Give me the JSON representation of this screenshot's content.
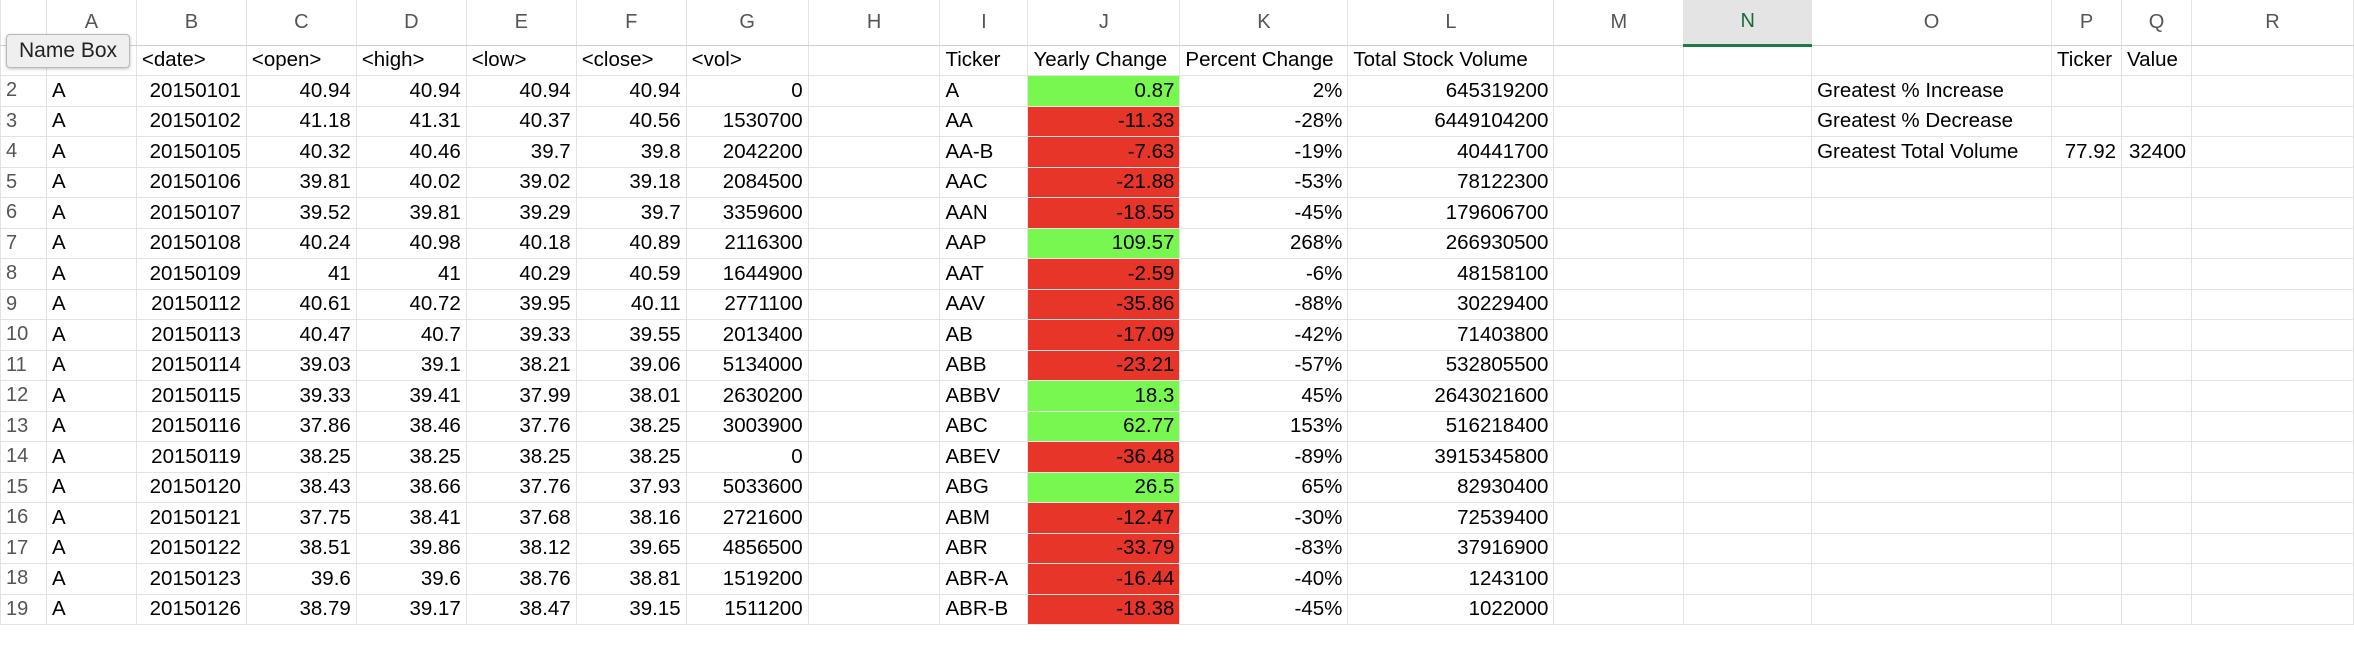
{
  "name_box": "Name Box",
  "columns": [
    "A",
    "B",
    "C",
    "D",
    "E",
    "F",
    "G",
    "H",
    "I",
    "J",
    "K",
    "L",
    "M",
    "N",
    "O",
    "P",
    "Q",
    "R"
  ],
  "selected_column": "N",
  "header_row": {
    "row": "",
    "cells": [
      "",
      "<date>",
      "<open>",
      "<high>",
      "<low>",
      "<close>",
      "<vol>",
      "",
      "Ticker",
      "Yearly Change",
      "Percent Change",
      "Total Stock Volume",
      "",
      "",
      "",
      "Ticker",
      "Value",
      ""
    ]
  },
  "rows": [
    {
      "row": "2",
      "cells": [
        "A",
        "20150101",
        "40.94",
        "40.94",
        "40.94",
        "40.94",
        "0",
        "",
        "A",
        "0.87",
        "2%",
        "645319200",
        "",
        "",
        "Greatest % Increase",
        "",
        "",
        ""
      ],
      "change_status": "positive"
    },
    {
      "row": "3",
      "cells": [
        "A",
        "20150102",
        "41.18",
        "41.31",
        "40.37",
        "40.56",
        "1530700",
        "",
        "AA",
        "-11.33",
        "-28%",
        "6449104200",
        "",
        "",
        "Greatest % Decrease",
        "",
        "",
        ""
      ],
      "change_status": "negative"
    },
    {
      "row": "4",
      "cells": [
        "A",
        "20150105",
        "40.32",
        "40.46",
        "39.7",
        "39.8",
        "2042200",
        "",
        "AA-B",
        "-7.63",
        "-19%",
        "40441700",
        "",
        "",
        "Greatest Total Volume",
        "77.92",
        "32400",
        ""
      ],
      "change_status": "negative"
    },
    {
      "row": "5",
      "cells": [
        "A",
        "20150106",
        "39.81",
        "40.02",
        "39.02",
        "39.18",
        "2084500",
        "",
        "AAC",
        "-21.88",
        "-53%",
        "78122300",
        "",
        "",
        "",
        "",
        "",
        ""
      ],
      "change_status": "negative"
    },
    {
      "row": "6",
      "cells": [
        "A",
        "20150107",
        "39.52",
        "39.81",
        "39.29",
        "39.7",
        "3359600",
        "",
        "AAN",
        "-18.55",
        "-45%",
        "179606700",
        "",
        "",
        "",
        "",
        "",
        ""
      ],
      "change_status": "negative"
    },
    {
      "row": "7",
      "cells": [
        "A",
        "20150108",
        "40.24",
        "40.98",
        "40.18",
        "40.89",
        "2116300",
        "",
        "AAP",
        "109.57",
        "268%",
        "266930500",
        "",
        "",
        "",
        "",
        "",
        ""
      ],
      "change_status": "positive"
    },
    {
      "row": "8",
      "cells": [
        "A",
        "20150109",
        "41",
        "41",
        "40.29",
        "40.59",
        "1644900",
        "",
        "AAT",
        "-2.59",
        "-6%",
        "48158100",
        "",
        "",
        "",
        "",
        "",
        ""
      ],
      "change_status": "negative"
    },
    {
      "row": "9",
      "cells": [
        "A",
        "20150112",
        "40.61",
        "40.72",
        "39.95",
        "40.11",
        "2771100",
        "",
        "AAV",
        "-35.86",
        "-88%",
        "30229400",
        "",
        "",
        "",
        "",
        "",
        ""
      ],
      "change_status": "negative"
    },
    {
      "row": "10",
      "cells": [
        "A",
        "20150113",
        "40.47",
        "40.7",
        "39.33",
        "39.55",
        "2013400",
        "",
        "AB",
        "-17.09",
        "-42%",
        "71403800",
        "",
        "",
        "",
        "",
        "",
        ""
      ],
      "change_status": "negative"
    },
    {
      "row": "11",
      "cells": [
        "A",
        "20150114",
        "39.03",
        "39.1",
        "38.21",
        "39.06",
        "5134000",
        "",
        "ABB",
        "-23.21",
        "-57%",
        "532805500",
        "",
        "",
        "",
        "",
        "",
        ""
      ],
      "change_status": "negative"
    },
    {
      "row": "12",
      "cells": [
        "A",
        "20150115",
        "39.33",
        "39.41",
        "37.99",
        "38.01",
        "2630200",
        "",
        "ABBV",
        "18.3",
        "45%",
        "2643021600",
        "",
        "",
        "",
        "",
        "",
        ""
      ],
      "change_status": "positive"
    },
    {
      "row": "13",
      "cells": [
        "A",
        "20150116",
        "37.86",
        "38.46",
        "37.76",
        "38.25",
        "3003900",
        "",
        "ABC",
        "62.77",
        "153%",
        "516218400",
        "",
        "",
        "",
        "",
        "",
        ""
      ],
      "change_status": "positive"
    },
    {
      "row": "14",
      "cells": [
        "A",
        "20150119",
        "38.25",
        "38.25",
        "38.25",
        "38.25",
        "0",
        "",
        "ABEV",
        "-36.48",
        "-89%",
        "3915345800",
        "",
        "",
        "",
        "",
        "",
        ""
      ],
      "change_status": "negative"
    },
    {
      "row": "15",
      "cells": [
        "A",
        "20150120",
        "38.43",
        "38.66",
        "37.76",
        "37.93",
        "5033600",
        "",
        "ABG",
        "26.5",
        "65%",
        "82930400",
        "",
        "",
        "",
        "",
        "",
        ""
      ],
      "change_status": "positive"
    },
    {
      "row": "16",
      "cells": [
        "A",
        "20150121",
        "37.75",
        "38.41",
        "37.68",
        "38.16",
        "2721600",
        "",
        "ABM",
        "-12.47",
        "-30%",
        "72539400",
        "",
        "",
        "",
        "",
        "",
        ""
      ],
      "change_status": "negative"
    },
    {
      "row": "17",
      "cells": [
        "A",
        "20150122",
        "38.51",
        "39.86",
        "38.12",
        "39.65",
        "4856500",
        "",
        "ABR",
        "-33.79",
        "-83%",
        "37916900",
        "",
        "",
        "",
        "",
        "",
        ""
      ],
      "change_status": "negative"
    },
    {
      "row": "18",
      "cells": [
        "A",
        "20150123",
        "39.6",
        "39.6",
        "38.76",
        "38.81",
        "1519200",
        "",
        "ABR-A",
        "-16.44",
        "-40%",
        "1243100",
        "",
        "",
        "",
        "",
        "",
        ""
      ],
      "change_status": "negative"
    },
    {
      "row": "19",
      "cells": [
        "A",
        "20150126",
        "38.79",
        "39.17",
        "38.47",
        "39.15",
        "1511200",
        "",
        "ABR-B",
        "-18.38",
        "-45%",
        "1022000",
        "",
        "",
        "",
        "",
        "",
        ""
      ],
      "change_status": "negative"
    }
  ],
  "colors": {
    "positive": "#77f74f",
    "negative": "#e8352a",
    "selected_header": "#1d7a44"
  }
}
